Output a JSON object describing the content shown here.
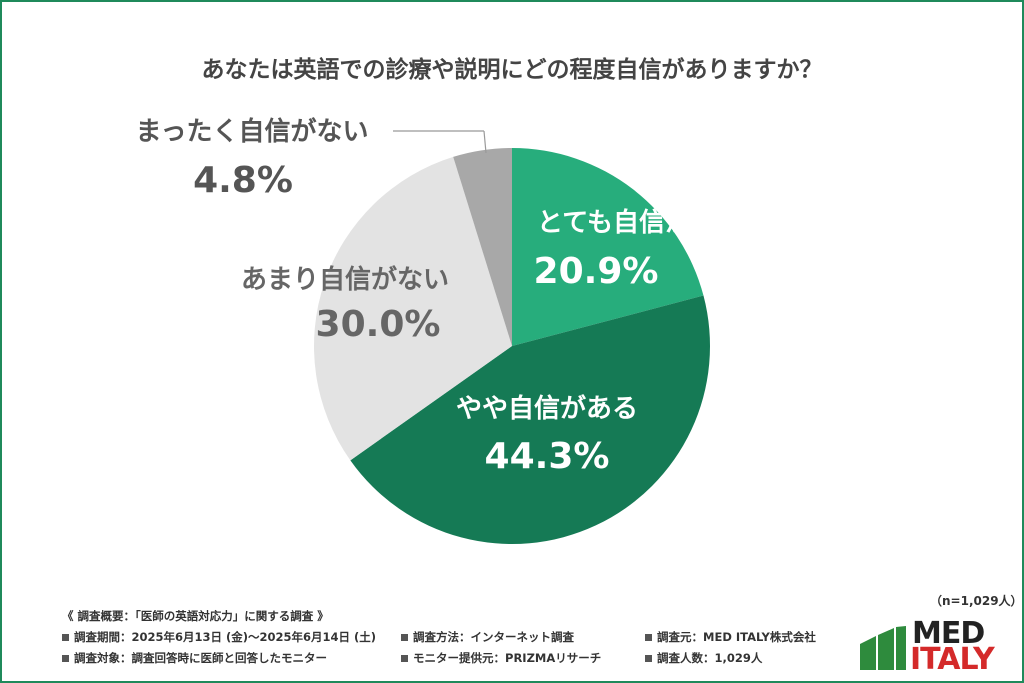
{
  "title": "あなたは英語での診療や説明にどの程度自信がありますか？",
  "chart_data": {
    "type": "pie",
    "categories": [
      "とても自信がある",
      "やや自信がある",
      "あまり自信がない",
      "まったく自信がない"
    ],
    "values": [
      20.9,
      44.3,
      30.0,
      4.8
    ],
    "value_labels": [
      "20.9%",
      "44.3%",
      "30.0%",
      "4.8%"
    ],
    "colors": [
      "#27ad7c",
      "#157a55",
      "#e3e3e3",
      "#a8a8a8"
    ],
    "start_angle_deg": 0,
    "direction": "clockwise"
  },
  "sample_size": "（n=1,029人）",
  "notes": {
    "heading": "《 調査概要：「医師の英語対応力」に関する調査 》",
    "period": "調査期間：2025年6月13日 (金)〜2025年6月14日 (土)",
    "method": "調査方法：インターネット調査",
    "source": "調査元：MED ITALY株式会社",
    "target": "調査対象：調査回答時に医師と回答したモニター",
    "provider": "モニター提供元：PRIZMAリサーチ",
    "count": "調査人数：1,029人"
  },
  "logo": {
    "line1": "MED",
    "line2": "ITALY"
  }
}
